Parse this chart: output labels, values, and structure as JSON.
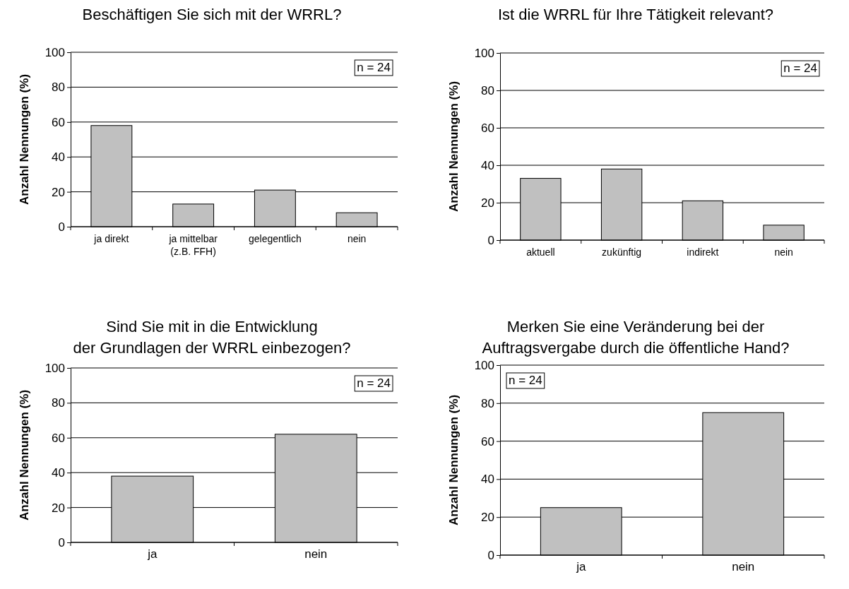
{
  "chart_data": [
    {
      "type": "bar",
      "title": "Beschäftigen Sie sich mit der WRRL?",
      "ylabel": "Anzahl Nennungen (%)",
      "categories": [
        "ja direkt",
        "ja mittelbar\n(z.B. FFH)",
        "gelegentlich",
        "nein"
      ],
      "values": [
        58,
        13,
        21,
        8
      ],
      "color": "#c0c0c0",
      "ylim": [
        0,
        100
      ],
      "yticks": [
        0,
        20,
        40,
        60,
        80,
        100
      ],
      "grid": "y",
      "annotations": [
        "n = 24"
      ]
    },
    {
      "type": "bar",
      "title": "Ist die WRRL für Ihre Tätigkeit relevant?",
      "ylabel": "Anzahl Nennungen (%)",
      "categories": [
        "aktuell",
        "zukünftig",
        "indirekt",
        "nein"
      ],
      "values": [
        33,
        38,
        21,
        8
      ],
      "color": "#c0c0c0",
      "ylim": [
        0,
        100
      ],
      "yticks": [
        0,
        20,
        40,
        60,
        80,
        100
      ],
      "grid": "y",
      "annotations": [
        "n = 24"
      ]
    },
    {
      "type": "bar",
      "title": "Sind Sie mit in die Entwicklung\nder Grundlagen der WRRL einbezogen?",
      "ylabel": "Anzahl Nennungen (%)",
      "categories": [
        "ja",
        "nein"
      ],
      "values": [
        38,
        62
      ],
      "color": "#c0c0c0",
      "ylim": [
        0,
        100
      ],
      "yticks": [
        0,
        20,
        40,
        60,
        80,
        100
      ],
      "grid": "y",
      "annotations": [
        "n = 24"
      ]
    },
    {
      "type": "bar",
      "title": "Merken Sie eine Veränderung bei der\nAuftragsvergabe durch die öffentliche Hand?",
      "ylabel": "Anzahl Nennungen (%)",
      "categories": [
        "ja",
        "nein"
      ],
      "values": [
        25,
        75
      ],
      "color": "#c0c0c0",
      "ylim": [
        0,
        100
      ],
      "yticks": [
        0,
        20,
        40,
        60,
        80,
        100
      ],
      "grid": "y",
      "annotations": [
        "n = 24"
      ]
    }
  ]
}
